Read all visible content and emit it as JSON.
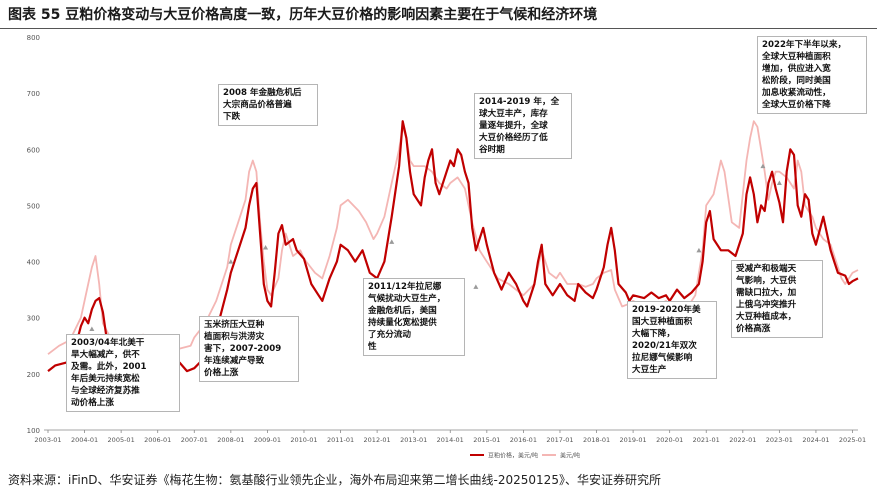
{
  "title": "图表 55 豆粕价格变动与大豆价格高度一致，历年大豆价格的影响因素主要在于气候和经济环境",
  "source": "资料来源：iFinD、华安证券《梅花生物：氨基酸行业领先企业，海外布局迎来第二增长曲线-20250125》、华安证券研究所",
  "annotations": [
    {
      "id": "a2008",
      "text": "2008 年金融危机后\n大宗商品价格普遍\n下跌"
    },
    {
      "id": "a2014",
      "text": "2014-2019 年，全\n球大豆丰产，库存\n量逐年提升，全球\n大豆价格经历了低\n谷时期"
    },
    {
      "id": "a2022",
      "text": "2022年下半年以来，\n全球大豆种植面积\n增加，供应进入宽\n松阶段，同时美国\n加息收紧流动性，\n全球大豆价格下降"
    },
    {
      "id": "a2003",
      "text": "2003/04年北美干\n旱大幅减产，供不\n及需。此外，2001\n年后美元持续宽松\n与全球经济复苏推\n动价格上涨"
    },
    {
      "id": "a2007",
      "text": "玉米挤压大豆种\n植面积与洪涝灾\n害下，2007-2009\n年连续减产导致\n价格上涨"
    },
    {
      "id": "a2011",
      "text": "2011/12年拉尼娜\n气候扰动大豆生产，\n金融危机后，美国\n持续量化宽松提供\n了充分流动\n性"
    },
    {
      "id": "a2019",
      "text": "2019-2020年美\n国大豆种植面积\n大幅下降，\n2020/21年双次\n拉尼娜气候影响\n大豆生产"
    },
    {
      "id": "a2023",
      "text": "受减产和极端天\n气影响，大豆供\n需缺口拉大，加\n上俄乌冲突推升\n大豆种植成本，\n价格高涨"
    }
  ],
  "colors": {
    "soymeal": "#c00000",
    "soybean": "#f4b6b4",
    "axis": "#888888"
  },
  "chart_data": {
    "type": "line",
    "title": "",
    "xlabel": "",
    "ylabel": "",
    "ylim": [
      100,
      800
    ],
    "yticks": [
      "100",
      "200",
      "300",
      "400",
      "500",
      "600",
      "700",
      "800"
    ],
    "xticks": [
      "2003-01",
      "2004-01",
      "2005-01",
      "2006-01",
      "2007-01",
      "2008-01",
      "2009-01",
      "2010-01",
      "2011-01",
      "2012-01",
      "2013-01",
      "2014-01",
      "2015-01",
      "2016-01",
      "2017-01",
      "2018-01",
      "2019-01",
      "2020-01",
      "2021-01",
      "2022-01",
      "2023-01",
      "2024-01",
      "2025-01"
    ],
    "grid": false,
    "legend_position": "bottom-center",
    "series": [
      {
        "name": "豆粕价格，美元/吨",
        "points": [
          [
            2003.0,
            205
          ],
          [
            2003.2,
            215
          ],
          [
            2003.5,
            220
          ],
          [
            2003.7,
            235
          ],
          [
            2003.9,
            285
          ],
          [
            2004.0,
            300
          ],
          [
            2004.1,
            290
          ],
          [
            2004.2,
            315
          ],
          [
            2004.3,
            330
          ],
          [
            2004.4,
            335
          ],
          [
            2004.5,
            310
          ],
          [
            2004.6,
            265
          ],
          [
            2004.8,
            210
          ],
          [
            2005.0,
            205
          ],
          [
            2005.3,
            225
          ],
          [
            2005.5,
            250
          ],
          [
            2005.7,
            225
          ],
          [
            2005.9,
            220
          ],
          [
            2006.0,
            210
          ],
          [
            2006.2,
            225
          ],
          [
            2006.4,
            215
          ],
          [
            2006.6,
            220
          ],
          [
            2006.8,
            205
          ],
          [
            2007.0,
            210
          ],
          [
            2007.3,
            230
          ],
          [
            2007.5,
            255
          ],
          [
            2007.7,
            300
          ],
          [
            2007.9,
            350
          ],
          [
            2008.0,
            380
          ],
          [
            2008.2,
            420
          ],
          [
            2008.4,
            460
          ],
          [
            2008.5,
            500
          ],
          [
            2008.6,
            530
          ],
          [
            2008.7,
            540
          ],
          [
            2008.8,
            450
          ],
          [
            2008.9,
            360
          ],
          [
            2009.0,
            330
          ],
          [
            2009.1,
            320
          ],
          [
            2009.2,
            380
          ],
          [
            2009.3,
            450
          ],
          [
            2009.4,
            465
          ],
          [
            2009.5,
            430
          ],
          [
            2009.7,
            440
          ],
          [
            2009.8,
            420
          ],
          [
            2010.0,
            405
          ],
          [
            2010.2,
            360
          ],
          [
            2010.4,
            340
          ],
          [
            2010.5,
            330
          ],
          [
            2010.7,
            370
          ],
          [
            2010.9,
            400
          ],
          [
            2011.0,
            430
          ],
          [
            2011.2,
            420
          ],
          [
            2011.4,
            400
          ],
          [
            2011.6,
            420
          ],
          [
            2011.8,
            380
          ],
          [
            2012.0,
            370
          ],
          [
            2012.2,
            400
          ],
          [
            2012.4,
            480
          ],
          [
            2012.6,
            570
          ],
          [
            2012.7,
            650
          ],
          [
            2012.8,
            620
          ],
          [
            2012.9,
            560
          ],
          [
            2013.0,
            520
          ],
          [
            2013.2,
            500
          ],
          [
            2013.3,
            550
          ],
          [
            2013.4,
            580
          ],
          [
            2013.5,
            600
          ],
          [
            2013.6,
            540
          ],
          [
            2013.7,
            520
          ],
          [
            2013.9,
            560
          ],
          [
            2014.0,
            580
          ],
          [
            2014.1,
            570
          ],
          [
            2014.2,
            600
          ],
          [
            2014.3,
            590
          ],
          [
            2014.4,
            560
          ],
          [
            2014.5,
            540
          ],
          [
            2014.6,
            460
          ],
          [
            2014.7,
            420
          ],
          [
            2014.8,
            440
          ],
          [
            2014.9,
            460
          ],
          [
            2015.0,
            430
          ],
          [
            2015.2,
            380
          ],
          [
            2015.4,
            350
          ],
          [
            2015.6,
            380
          ],
          [
            2015.8,
            360
          ],
          [
            2016.0,
            330
          ],
          [
            2016.1,
            320
          ],
          [
            2016.3,
            360
          ],
          [
            2016.4,
            400
          ],
          [
            2016.5,
            430
          ],
          [
            2016.6,
            360
          ],
          [
            2016.8,
            340
          ],
          [
            2017.0,
            360
          ],
          [
            2017.2,
            340
          ],
          [
            2017.4,
            330
          ],
          [
            2017.5,
            360
          ],
          [
            2017.7,
            345
          ],
          [
            2017.9,
            335
          ],
          [
            2018.0,
            350
          ],
          [
            2018.2,
            390
          ],
          [
            2018.3,
            430
          ],
          [
            2018.4,
            460
          ],
          [
            2018.5,
            420
          ],
          [
            2018.6,
            360
          ],
          [
            2018.8,
            345
          ],
          [
            2018.9,
            330
          ],
          [
            2019.0,
            340
          ],
          [
            2019.3,
            335
          ],
          [
            2019.5,
            345
          ],
          [
            2019.7,
            335
          ],
          [
            2019.9,
            340
          ],
          [
            2020.0,
            330
          ],
          [
            2020.2,
            350
          ],
          [
            2020.4,
            335
          ],
          [
            2020.6,
            345
          ],
          [
            2020.8,
            360
          ],
          [
            2020.9,
            400
          ],
          [
            2021.0,
            470
          ],
          [
            2021.1,
            490
          ],
          [
            2021.2,
            440
          ],
          [
            2021.4,
            420
          ],
          [
            2021.6,
            420
          ],
          [
            2021.8,
            410
          ],
          [
            2022.0,
            450
          ],
          [
            2022.1,
            520
          ],
          [
            2022.2,
            550
          ],
          [
            2022.3,
            520
          ],
          [
            2022.4,
            470
          ],
          [
            2022.5,
            500
          ],
          [
            2022.6,
            490
          ],
          [
            2022.7,
            540
          ],
          [
            2022.8,
            560
          ],
          [
            2022.9,
            530
          ],
          [
            2023.0,
            505
          ],
          [
            2023.1,
            470
          ],
          [
            2023.2,
            560
          ],
          [
            2023.3,
            600
          ],
          [
            2023.4,
            590
          ],
          [
            2023.5,
            500
          ],
          [
            2023.6,
            480
          ],
          [
            2023.7,
            520
          ],
          [
            2023.8,
            510
          ],
          [
            2023.9,
            450
          ],
          [
            2024.0,
            430
          ],
          [
            2024.2,
            480
          ],
          [
            2024.4,
            420
          ],
          [
            2024.5,
            400
          ],
          [
            2024.6,
            380
          ],
          [
            2024.8,
            375
          ],
          [
            2024.9,
            360
          ],
          [
            2025.0,
            365
          ],
          [
            2025.15,
            370
          ]
        ]
      },
      {
        "name": "美元/吨",
        "points": [
          [
            2003.0,
            235
          ],
          [
            2003.3,
            250
          ],
          [
            2003.6,
            260
          ],
          [
            2003.9,
            300
          ],
          [
            2004.1,
            360
          ],
          [
            2004.2,
            390
          ],
          [
            2004.3,
            410
          ],
          [
            2004.4,
            360
          ],
          [
            2004.5,
            290
          ],
          [
            2004.7,
            265
          ],
          [
            2004.9,
            250
          ],
          [
            2005.1,
            240
          ],
          [
            2005.4,
            255
          ],
          [
            2005.6,
            270
          ],
          [
            2005.8,
            245
          ],
          [
            2006.0,
            235
          ],
          [
            2006.3,
            240
          ],
          [
            2006.6,
            245
          ],
          [
            2006.9,
            250
          ],
          [
            2007.0,
            265
          ],
          [
            2007.3,
            290
          ],
          [
            2007.6,
            330
          ],
          [
            2007.9,
            390
          ],
          [
            2008.0,
            430
          ],
          [
            2008.2,
            470
          ],
          [
            2008.4,
            510
          ],
          [
            2008.5,
            560
          ],
          [
            2008.6,
            580
          ],
          [
            2008.7,
            560
          ],
          [
            2008.8,
            470
          ],
          [
            2008.9,
            400
          ],
          [
            2009.0,
            350
          ],
          [
            2009.1,
            340
          ],
          [
            2009.3,
            370
          ],
          [
            2009.4,
            420
          ],
          [
            2009.5,
            450
          ],
          [
            2009.7,
            410
          ],
          [
            2009.9,
            420
          ],
          [
            2010.0,
            405
          ],
          [
            2010.3,
            380
          ],
          [
            2010.5,
            370
          ],
          [
            2010.7,
            410
          ],
          [
            2010.9,
            460
          ],
          [
            2011.0,
            500
          ],
          [
            2011.2,
            510
          ],
          [
            2011.5,
            490
          ],
          [
            2011.7,
            470
          ],
          [
            2011.9,
            440
          ],
          [
            2012.0,
            450
          ],
          [
            2012.2,
            480
          ],
          [
            2012.4,
            540
          ],
          [
            2012.6,
            600
          ],
          [
            2012.7,
            640
          ],
          [
            2012.8,
            620
          ],
          [
            2012.9,
            580
          ],
          [
            2013.0,
            570
          ],
          [
            2013.3,
            570
          ],
          [
            2013.5,
            560
          ],
          [
            2013.7,
            540
          ],
          [
            2013.9,
            530
          ],
          [
            2014.0,
            540
          ],
          [
            2014.2,
            550
          ],
          [
            2014.4,
            530
          ],
          [
            2014.6,
            470
          ],
          [
            2014.8,
            420
          ],
          [
            2015.0,
            400
          ],
          [
            2015.3,
            370
          ],
          [
            2015.6,
            360
          ],
          [
            2015.9,
            345
          ],
          [
            2016.0,
            340
          ],
          [
            2016.3,
            360
          ],
          [
            2016.5,
            420
          ],
          [
            2016.7,
            380
          ],
          [
            2016.9,
            370
          ],
          [
            2017.0,
            380
          ],
          [
            2017.2,
            360
          ],
          [
            2017.5,
            360
          ],
          [
            2017.7,
            355
          ],
          [
            2017.9,
            360
          ],
          [
            2018.0,
            370
          ],
          [
            2018.2,
            380
          ],
          [
            2018.4,
            385
          ],
          [
            2018.5,
            350
          ],
          [
            2018.7,
            320
          ],
          [
            2018.9,
            325
          ],
          [
            2019.0,
            330
          ],
          [
            2019.3,
            320
          ],
          [
            2019.6,
            320
          ],
          [
            2019.9,
            330
          ],
          [
            2020.0,
            320
          ],
          [
            2020.3,
            315
          ],
          [
            2020.5,
            320
          ],
          [
            2020.7,
            340
          ],
          [
            2020.8,
            380
          ],
          [
            2020.9,
            420
          ],
          [
            2021.0,
            500
          ],
          [
            2021.2,
            520
          ],
          [
            2021.4,
            580
          ],
          [
            2021.5,
            560
          ],
          [
            2021.7,
            470
          ],
          [
            2021.9,
            460
          ],
          [
            2022.0,
            520
          ],
          [
            2022.1,
            580
          ],
          [
            2022.2,
            620
          ],
          [
            2022.3,
            650
          ],
          [
            2022.4,
            640
          ],
          [
            2022.5,
            600
          ],
          [
            2022.6,
            560
          ],
          [
            2022.7,
            510
          ],
          [
            2022.8,
            540
          ],
          [
            2022.9,
            560
          ],
          [
            2023.0,
            560
          ],
          [
            2023.2,
            550
          ],
          [
            2023.4,
            530
          ],
          [
            2023.5,
            580
          ],
          [
            2023.6,
            560
          ],
          [
            2023.7,
            500
          ],
          [
            2023.8,
            490
          ],
          [
            2023.9,
            480
          ],
          [
            2024.0,
            460
          ],
          [
            2024.2,
            440
          ],
          [
            2024.4,
            430
          ],
          [
            2024.6,
            390
          ],
          [
            2024.7,
            370
          ],
          [
            2024.8,
            360
          ],
          [
            2024.9,
            370
          ],
          [
            2025.0,
            380
          ],
          [
            2025.15,
            385
          ]
        ]
      }
    ]
  }
}
